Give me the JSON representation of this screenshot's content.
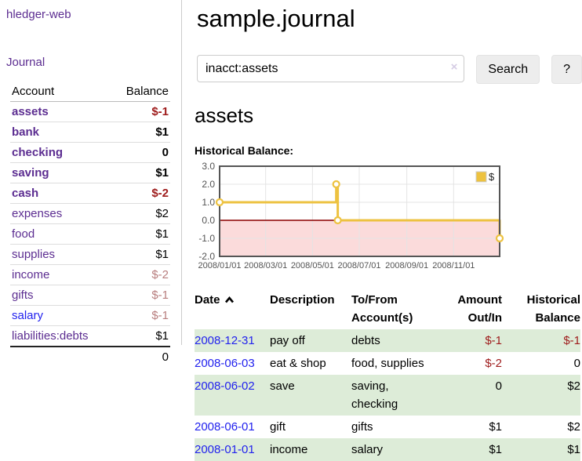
{
  "app": {
    "title": "hledger-web"
  },
  "sidebar": {
    "journal_link": "Journal",
    "accounts": {
      "account_header": "Account",
      "balance_header": "Balance",
      "rows": [
        {
          "account": "assets",
          "balance": "$-1",
          "depth": 1,
          "bold": true,
          "balance_class": "neg",
          "link": "purple"
        },
        {
          "account": "bank",
          "balance": "$1",
          "depth": 2,
          "bold": true,
          "balance_class": "",
          "link": "purple"
        },
        {
          "account": "checking",
          "balance": "0",
          "depth": 3,
          "bold": true,
          "balance_class": "",
          "link": "purple"
        },
        {
          "account": "saving",
          "balance": "$1",
          "depth": 3,
          "bold": true,
          "balance_class": "",
          "link": "purple"
        },
        {
          "account": "cash",
          "balance": "$-2",
          "depth": 2,
          "bold": true,
          "balance_class": "neg",
          "link": "purple"
        },
        {
          "account": "expenses",
          "balance": "$2",
          "depth": 1,
          "bold": false,
          "balance_class": "",
          "link": "purple"
        },
        {
          "account": "food",
          "balance": "$1",
          "depth": 2,
          "bold": false,
          "balance_class": "",
          "link": "purple"
        },
        {
          "account": "supplies",
          "balance": "$1",
          "depth": 2,
          "bold": false,
          "balance_class": "",
          "link": "purple"
        },
        {
          "account": "income",
          "balance": "$-2",
          "depth": 1,
          "bold": false,
          "balance_class": "negm",
          "link": "purple"
        },
        {
          "account": "gifts",
          "balance": "$-1",
          "depth": 2,
          "bold": false,
          "balance_class": "negm",
          "link": "purple"
        },
        {
          "account": "salary",
          "balance": "$-1",
          "depth": 2,
          "bold": false,
          "balance_class": "negm",
          "link": "blue"
        },
        {
          "account": "liabilities:debts",
          "balance": "$1",
          "depth": 1,
          "bold": false,
          "balance_class": "",
          "link": "purple"
        }
      ],
      "total": "0"
    }
  },
  "main": {
    "title": "sample.journal",
    "search": {
      "value": "inacct:assets",
      "clear_icon": "×",
      "button_label": "Search",
      "help_label": "?"
    },
    "account_heading": "assets",
    "chart_label": "Historical Balance:"
  },
  "chart_data": {
    "type": "line",
    "step": "after",
    "title": "Historical Balance:",
    "legend": "$",
    "ylim": [
      -2,
      3
    ],
    "xlim_days": [
      0,
      365
    ],
    "y_ticks": [
      {
        "label": "3.0",
        "value": 3.0
      },
      {
        "label": "2.0",
        "value": 2.0
      },
      {
        "label": "1.0",
        "value": 1.0
      },
      {
        "label": "0.0",
        "value": 0.0
      },
      {
        "label": "-1.0",
        "value": -1.0
      },
      {
        "label": "-2.0",
        "value": -2.0
      }
    ],
    "x_ticks": [
      {
        "label": "2008/01/01",
        "day": 0
      },
      {
        "label": "2008/03/01",
        "day": 60
      },
      {
        "label": "2008/05/01",
        "day": 121
      },
      {
        "label": "2008/07/01",
        "day": 182
      },
      {
        "label": "2008/09/01",
        "day": 244
      },
      {
        "label": "2008/11/01",
        "day": 305
      }
    ],
    "series": [
      {
        "name": "$",
        "points": [
          {
            "date": "2008-01-01",
            "day": 0,
            "value": 1
          },
          {
            "date": "2008-06-01",
            "day": 152,
            "value": 2
          },
          {
            "date": "2008-06-03",
            "day": 154,
            "value": 0
          },
          {
            "date": "2008-12-31",
            "day": 365,
            "value": -1
          }
        ]
      }
    ]
  },
  "register": {
    "headers": {
      "date": "Date",
      "description": "Description",
      "accounts": "To/From Account(s)",
      "amount": "Amount Out/In",
      "balance": "Historical Balance"
    },
    "rows": [
      {
        "date": "2008-12-31",
        "description": "pay off",
        "accounts": "debts",
        "amount": "$-1",
        "amount_neg": true,
        "balance": "$-1",
        "balance_neg": true,
        "shaded": true
      },
      {
        "date": "2008-06-03",
        "description": "eat & shop",
        "accounts": "food, supplies",
        "amount": "$-2",
        "amount_neg": true,
        "balance": "0",
        "balance_neg": false,
        "shaded": false
      },
      {
        "date": "2008-06-02",
        "description": "save",
        "accounts": "saving, checking",
        "amount": "0",
        "amount_neg": false,
        "balance": "$2",
        "balance_neg": false,
        "shaded": true
      },
      {
        "date": "2008-06-01",
        "description": "gift",
        "accounts": "gifts",
        "amount": "$1",
        "amount_neg": false,
        "balance": "$2",
        "balance_neg": false,
        "shaded": false
      },
      {
        "date": "2008-01-01",
        "description": "income",
        "accounts": "salary",
        "amount": "$1",
        "amount_neg": false,
        "balance": "$1",
        "balance_neg": false,
        "shaded": true
      }
    ]
  },
  "colors": {
    "link_purple": "#5c2d91",
    "link_blue": "#2222ee",
    "negative": "#9e1b1b",
    "negative_muted": "#b87e7e",
    "row_shade_green": "#ddecd8",
    "button_bg": "#ededed",
    "chart_line": "#edc240",
    "chart_zero_line": "#8b0000",
    "chart_negative_region": "#fbdbdb",
    "chart_grid": "#e4e4e4",
    "chart_border": "#555555",
    "chart_text": "#545454"
  }
}
